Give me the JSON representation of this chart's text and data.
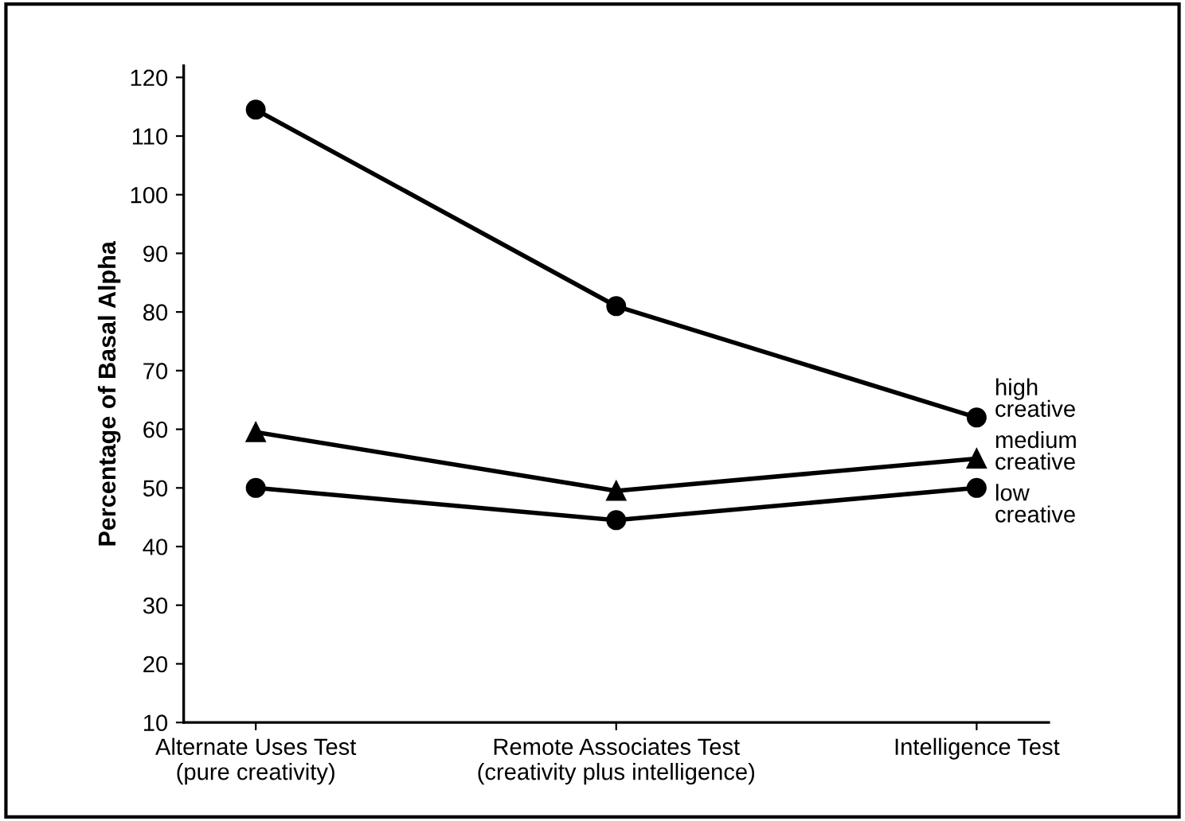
{
  "chart_data": {
    "type": "line",
    "ylabel": "Percentage of Basal Alpha",
    "categories": [
      "Alternate Uses Test\n(pure creativity)",
      "Remote Associates Test\n(creativity plus intelligence)",
      "Intelligence Test"
    ],
    "series": [
      {
        "name": "high\ncreative",
        "color": "#000000",
        "values": [
          114.5,
          81,
          62
        ],
        "marker": "circle"
      },
      {
        "name": "medium\ncreative",
        "color": "#000000",
        "values": [
          59.5,
          49.5,
          55
        ],
        "marker": "triangle"
      },
      {
        "name": "low\ncreative",
        "color": "#000000",
        "values": [
          50,
          44.5,
          50
        ],
        "marker": "circle"
      }
    ],
    "ylim": [
      10,
      122
    ],
    "yticks": [
      10,
      20,
      30,
      40,
      50,
      60,
      70,
      80,
      90,
      100,
      110,
      120
    ],
    "grid": false,
    "legend": false,
    "line_style": "solid"
  }
}
